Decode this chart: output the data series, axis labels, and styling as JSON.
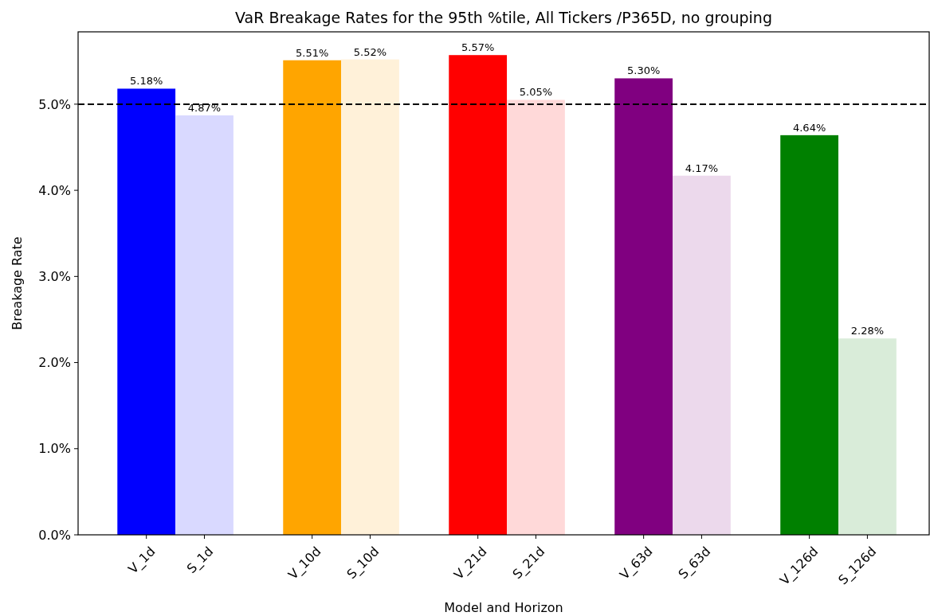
{
  "chart_data": {
    "type": "bar",
    "title": "VaR Breakage Rates for the 95th %tile, All Tickers /P365D, no grouping",
    "xlabel": "Model and Horizon",
    "ylabel": "Breakage Rate",
    "categories": [
      "V_1d",
      "S_1d",
      "V_10d",
      "S_10d",
      "V_21d",
      "S_21d",
      "V_63d",
      "S_63d",
      "V_126d",
      "S_126d"
    ],
    "values": [
      5.18,
      4.87,
      5.51,
      5.52,
      5.57,
      5.05,
      5.3,
      4.17,
      4.64,
      2.28
    ],
    "colors": [
      "#0000ff",
      "#d9d9ff",
      "#ffa500",
      "#fff1d9",
      "#ff0000",
      "#ffd9d9",
      "#800080",
      "#ecd9ec",
      "#008000",
      "#d9ecd9"
    ],
    "value_labels": [
      "5.18%",
      "4.87%",
      "5.51%",
      "5.52%",
      "5.57%",
      "5.05%",
      "5.30%",
      "4.17%",
      "4.64%",
      "2.28%"
    ],
    "ylim": [
      0,
      5.84
    ],
    "yticks": [
      {
        "value": 0,
        "label": "0.0%"
      },
      {
        "value": 1,
        "label": "1.0%"
      },
      {
        "value": 2,
        "label": "2.0%"
      },
      {
        "value": 3,
        "label": "3.0%"
      },
      {
        "value": 4,
        "label": "4.0%"
      },
      {
        "value": 5,
        "label": "5.0%"
      }
    ],
    "ref_lines": [
      {
        "axis": "y",
        "value": 5,
        "color": "#000000",
        "line_style": "dashed"
      }
    ],
    "grid": false
  }
}
